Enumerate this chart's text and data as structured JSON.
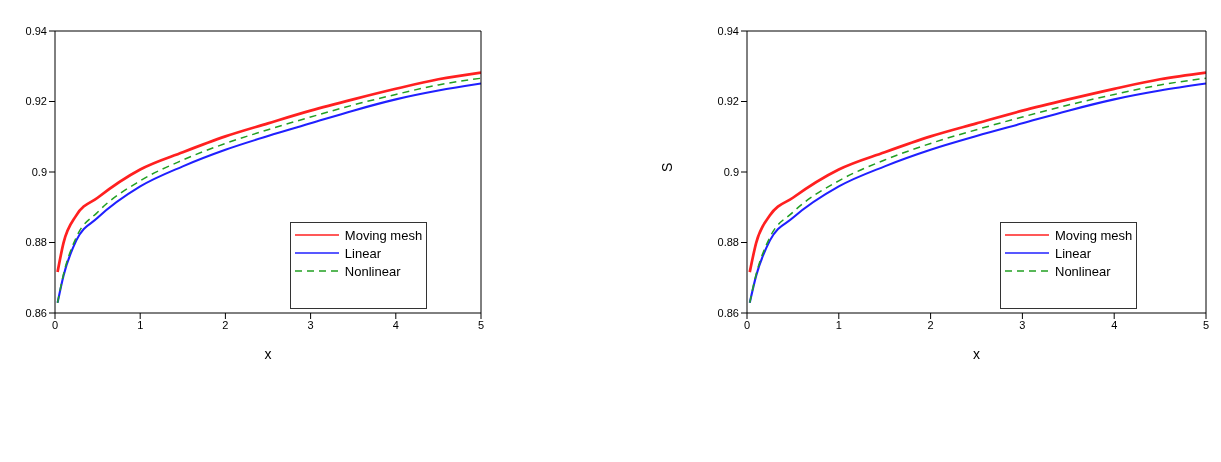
{
  "chart_data": [
    {
      "type": "line",
      "xlabel": "x",
      "x": [
        0.03,
        0.1,
        0.25,
        0.5,
        1,
        1.5,
        2,
        2.5,
        3,
        3.5,
        4,
        4.5,
        5
      ],
      "xlim": [
        0,
        5
      ],
      "xticks": [
        0,
        1,
        2,
        3,
        4,
        5
      ],
      "ylim": [
        0.86,
        0.94
      ],
      "yticks": [
        0.86,
        0.88,
        0.9,
        0.92,
        0.94
      ],
      "grid": false,
      "legend": "right",
      "marker": "none",
      "series": [
        {
          "name": "Moving mesh",
          "color": "#ff2020",
          "line_style": "solid",
          "values": [
            0.8716,
            0.8799,
            0.8877,
            0.8927,
            0.9007,
            0.9056,
            0.9101,
            0.9138,
            0.9174,
            0.9206,
            0.9236,
            0.9263,
            0.9282
          ]
        },
        {
          "name": "Linear",
          "color": "#2020ff",
          "line_style": "solid",
          "values": [
            0.8629,
            0.8706,
            0.8806,
            0.887,
            0.8959,
            0.9016,
            0.9063,
            0.9102,
            0.9138,
            0.9174,
            0.9206,
            0.9231,
            0.9251
          ]
        },
        {
          "name": "Nonlinear",
          "color": "#22a022",
          "line_style": "dashed",
          "values": [
            0.8629,
            0.871,
            0.8815,
            0.8886,
            0.8975,
            0.9034,
            0.9081,
            0.912,
            0.9156,
            0.919,
            0.922,
            0.9247,
            0.9266
          ]
        }
      ]
    },
    {
      "type": "line",
      "xlabel": "x",
      "ylabel": "S",
      "x": [
        0.03,
        0.1,
        0.25,
        0.5,
        1,
        1.5,
        2,
        2.5,
        3,
        3.5,
        4,
        4.5,
        5
      ],
      "xlim": [
        0,
        5
      ],
      "xticks": [
        0,
        1,
        2,
        3,
        4,
        5
      ],
      "ylim": [
        0.86,
        0.94
      ],
      "yticks": [
        0.86,
        0.88,
        0.9,
        0.92,
        0.94
      ],
      "grid": false,
      "legend": "right",
      "marker": "none",
      "series": [
        {
          "name": "Moving mesh",
          "color": "#ff2020",
          "line_style": "solid",
          "values": [
            0.8716,
            0.8799,
            0.8877,
            0.8927,
            0.9007,
            0.9056,
            0.9101,
            0.9138,
            0.9174,
            0.9206,
            0.9236,
            0.9263,
            0.9282
          ]
        },
        {
          "name": "Linear",
          "color": "#2020ff",
          "line_style": "solid",
          "values": [
            0.8629,
            0.8706,
            0.8806,
            0.887,
            0.8959,
            0.9016,
            0.9063,
            0.9102,
            0.9138,
            0.9174,
            0.9206,
            0.9231,
            0.9251
          ]
        },
        {
          "name": "Nonlinear",
          "color": "#22a022",
          "line_style": "dashed",
          "values": [
            0.8629,
            0.871,
            0.8815,
            0.8886,
            0.8975,
            0.9034,
            0.9081,
            0.912,
            0.9156,
            0.919,
            0.922,
            0.9247,
            0.9266
          ]
        }
      ]
    }
  ]
}
